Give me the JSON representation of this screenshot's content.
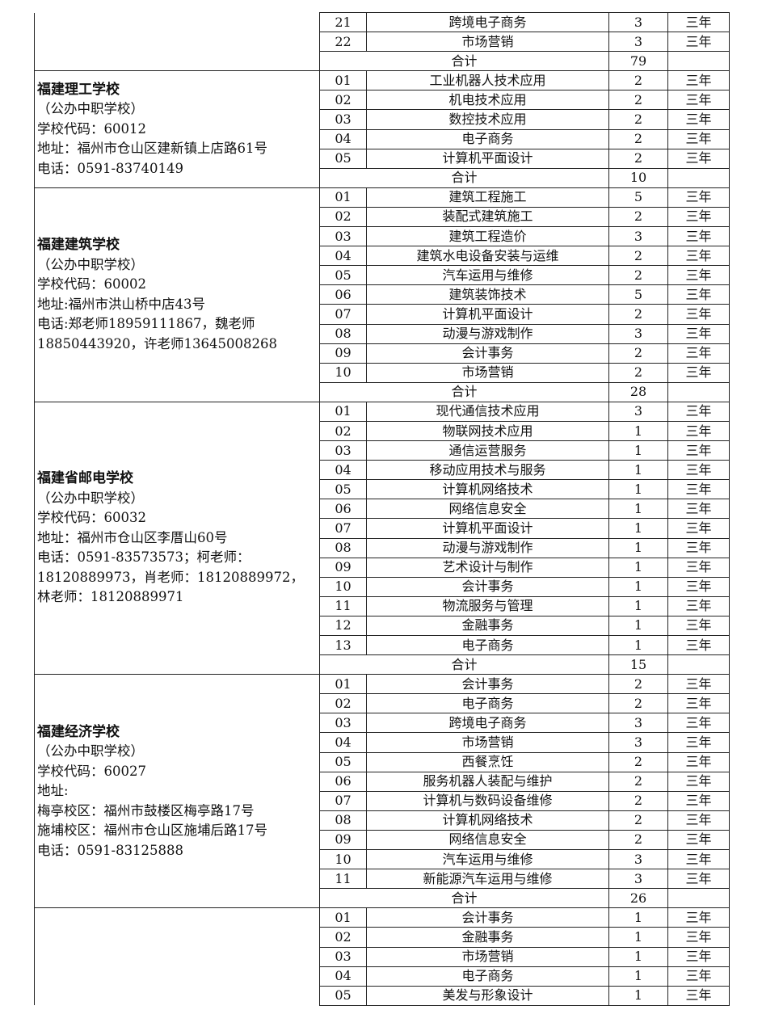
{
  "total_label": "合计",
  "groups": [
    {
      "info": {
        "name": "",
        "lines": []
      },
      "majors": [
        [
          "21",
          "跨境电子商务",
          "3",
          "三年"
        ],
        [
          "22",
          "市场营销",
          "3",
          "三年"
        ]
      ],
      "total": "79"
    },
    {
      "info": {
        "name": "福建理工学校",
        "lines": [
          "（公办中职学校）",
          "学校代码：60012",
          "地址：福州市仓山区建新镇上店路61号",
          "电话：0591-83740149"
        ]
      },
      "majors": [
        [
          "01",
          "工业机器人技术应用",
          "2",
          "三年"
        ],
        [
          "02",
          "机电技术应用",
          "2",
          "三年"
        ],
        [
          "03",
          "数控技术应用",
          "2",
          "三年"
        ],
        [
          "04",
          "电子商务",
          "2",
          "三年"
        ],
        [
          "05",
          "计算机平面设计",
          "2",
          "三年"
        ]
      ],
      "total": "10"
    },
    {
      "info": {
        "name": "福建建筑学校",
        "lines": [
          "（公办中职学校）",
          "学校代码：60002",
          "地址:福州市洪山桥中店43号",
          "电话:郑老师18959111867，魏老师",
          "18850443920，许老师13645008268"
        ]
      },
      "majors": [
        [
          "01",
          "建筑工程施工",
          "5",
          "三年"
        ],
        [
          "02",
          "装配式建筑施工",
          "2",
          "三年"
        ],
        [
          "03",
          "建筑工程造价",
          "3",
          "三年"
        ],
        [
          "04",
          "建筑水电设备安装与运维",
          "2",
          "三年"
        ],
        [
          "05",
          "汽车运用与维修",
          "2",
          "三年"
        ],
        [
          "06",
          "建筑装饰技术",
          "5",
          "三年"
        ],
        [
          "07",
          "计算机平面设计",
          "2",
          "三年"
        ],
        [
          "08",
          "动漫与游戏制作",
          "3",
          "三年"
        ],
        [
          "09",
          "会计事务",
          "2",
          "三年"
        ],
        [
          "10",
          "市场营销",
          "2",
          "三年"
        ]
      ],
      "total": "28"
    },
    {
      "info": {
        "name": "福建省邮电学校",
        "lines": [
          "（公办中职学校）",
          "学校代码：60032",
          "地址：福州市仓山区李厝山60号",
          "电话：0591-83573573；柯老师：",
          "18120889973，肖老师：18120889972，",
          "林老师：18120889971"
        ]
      },
      "majors": [
        [
          "01",
          "现代通信技术应用",
          "3",
          "三年"
        ],
        [
          "02",
          "物联网技术应用",
          "1",
          "三年"
        ],
        [
          "03",
          "通信运营服务",
          "1",
          "三年"
        ],
        [
          "04",
          "移动应用技术与服务",
          "1",
          "三年"
        ],
        [
          "05",
          "计算机网络技术",
          "1",
          "三年"
        ],
        [
          "06",
          "网络信息安全",
          "1",
          "三年"
        ],
        [
          "07",
          "计算机平面设计",
          "1",
          "三年"
        ],
        [
          "08",
          "动漫与游戏制作",
          "1",
          "三年"
        ],
        [
          "09",
          "艺术设计与制作",
          "1",
          "三年"
        ],
        [
          "10",
          "会计事务",
          "1",
          "三年"
        ],
        [
          "11",
          "物流服务与管理",
          "1",
          "三年"
        ],
        [
          "12",
          "金融事务",
          "1",
          "三年"
        ],
        [
          "13",
          "电子商务",
          "1",
          "三年"
        ]
      ],
      "total": "15"
    },
    {
      "info": {
        "name": "福建经济学校",
        "lines": [
          "（公办中职学校）",
          "学校代码：60027",
          "地址:",
          "梅亭校区：福州市鼓楼区梅亭路17号",
          "施埔校区：福州市仓山区施埔后路17号",
          "电话：0591-83125888"
        ]
      },
      "majors": [
        [
          "01",
          "会计事务",
          "2",
          "三年"
        ],
        [
          "02",
          "电子商务",
          "2",
          "三年"
        ],
        [
          "03",
          "跨境电子商务",
          "3",
          "三年"
        ],
        [
          "04",
          "市场营销",
          "3",
          "三年"
        ],
        [
          "05",
          "西餐烹饪",
          "2",
          "三年"
        ],
        [
          "06",
          "服务机器人装配与维护",
          "2",
          "三年"
        ],
        [
          "07",
          "计算机与数码设备维修",
          "2",
          "三年"
        ],
        [
          "08",
          "计算机网络技术",
          "2",
          "三年"
        ],
        [
          "09",
          "网络信息安全",
          "2",
          "三年"
        ],
        [
          "10",
          "汽车运用与维修",
          "3",
          "三年"
        ],
        [
          "11",
          "新能源汽车运用与维修",
          "3",
          "三年"
        ]
      ],
      "total": "26"
    },
    {
      "info": {
        "name": "",
        "lines": []
      },
      "majors": [
        [
          "01",
          "会计事务",
          "1",
          "三年"
        ],
        [
          "02",
          "金融事务",
          "1",
          "三年"
        ],
        [
          "03",
          "市场营销",
          "1",
          "三年"
        ],
        [
          "04",
          "电子商务",
          "1",
          "三年"
        ],
        [
          "05",
          "美发与形象设计",
          "1",
          "三年"
        ]
      ],
      "total": null
    }
  ]
}
